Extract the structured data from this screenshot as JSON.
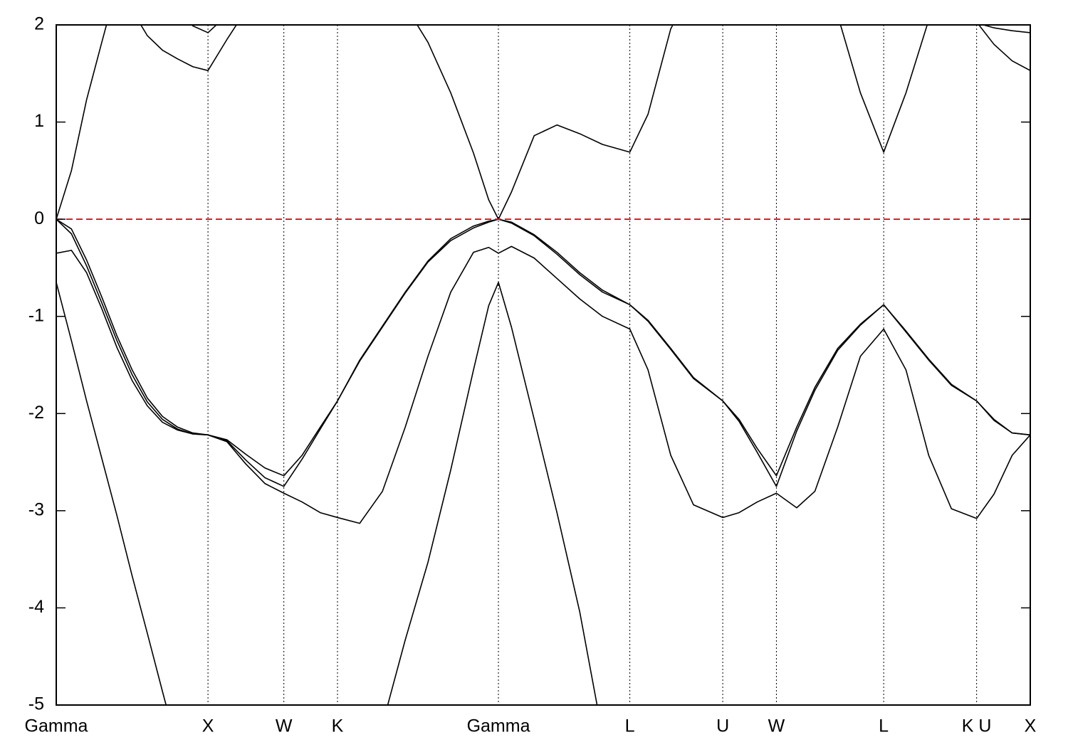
{
  "chart_data": {
    "type": "line",
    "x": [
      0,
      0.1,
      0.2,
      0.3,
      0.4,
      0.5,
      0.6,
      0.7,
      0.8,
      0.9,
      1.0,
      1.125,
      1.25,
      1.375,
      1.5,
      1.62,
      1.74,
      1.8536,
      2.0,
      2.15,
      2.3,
      2.45,
      2.6,
      2.75,
      2.85,
      2.9142,
      3.0,
      3.15,
      3.3,
      3.45,
      3.6,
      3.7802,
      3.9,
      4.05,
      4.2,
      4.3926,
      4.5,
      4.62,
      4.7462,
      4.88,
      5.0,
      5.15,
      5.3,
      5.4533,
      5.6,
      5.75,
      5.9,
      6.0657,
      6.18,
      6.3,
      6.4193
    ],
    "series": [
      {
        "color": "#000000",
        "values": [
          -0.65,
          -1.25,
          -1.87,
          -2.46,
          -3.05,
          -3.67,
          -4.26,
          -4.86,
          -5.45,
          null,
          null,
          null,
          null,
          null,
          null,
          null,
          null,
          null,
          null,
          -5.2,
          -4.33,
          -3.53,
          -2.58,
          -1.55,
          -0.89,
          -0.65,
          -1.11,
          -2.06,
          -3.02,
          -4.04,
          -5.3,
          null,
          null,
          null,
          null,
          null,
          null,
          null,
          null,
          null,
          null,
          null,
          null,
          null,
          null,
          null,
          null,
          null,
          null,
          null,
          null
        ]
      },
      {
        "color": "#000000",
        "values": [
          -0.35,
          -0.32,
          -0.55,
          -0.92,
          -1.32,
          -1.66,
          -1.92,
          -2.09,
          -2.17,
          -2.21,
          -2.22,
          -2.29,
          -2.52,
          -2.72,
          -2.82,
          -2.91,
          -3.02,
          -3.07,
          -3.13,
          -2.8,
          -2.14,
          -1.41,
          -0.75,
          -0.34,
          -0.29,
          -0.35,
          -0.28,
          -0.4,
          -0.61,
          -0.82,
          -1.0,
          -1.13,
          -1.55,
          -2.43,
          -2.94,
          -3.07,
          -3.02,
          -2.91,
          -2.82,
          -2.97,
          -2.8,
          -2.14,
          -1.41,
          -1.13,
          -1.55,
          -2.43,
          -2.98,
          -3.08,
          -2.83,
          -2.43,
          -2.22
        ]
      },
      {
        "color": "#000000",
        "values": [
          0,
          -0.15,
          -0.48,
          -0.86,
          -1.25,
          -1.6,
          -1.88,
          -2.06,
          -2.16,
          -2.21,
          -2.22,
          -2.28,
          -2.48,
          -2.66,
          -2.75,
          -2.47,
          -2.16,
          -1.87,
          -1.46,
          -1.11,
          -0.76,
          -0.44,
          -0.22,
          -0.09,
          -0.03,
          0,
          -0.04,
          -0.17,
          -0.36,
          -0.57,
          -0.75,
          -0.88,
          -1.05,
          -1.34,
          -1.64,
          -1.87,
          -2.08,
          -2.4,
          -2.75,
          -2.18,
          -1.76,
          -1.35,
          -1.09,
          -0.88,
          -1.16,
          -1.45,
          -1.71,
          -1.87,
          -2.07,
          -2.2,
          -2.22
        ]
      },
      {
        "color": "#000000",
        "values": [
          0,
          -0.1,
          -0.42,
          -0.8,
          -1.2,
          -1.55,
          -1.84,
          -2.03,
          -2.14,
          -2.2,
          -2.22,
          -2.27,
          -2.42,
          -2.56,
          -2.64,
          -2.43,
          -2.14,
          -1.87,
          -1.45,
          -1.1,
          -0.75,
          -0.43,
          -0.2,
          -0.07,
          -0.02,
          0,
          -0.03,
          -0.16,
          -0.34,
          -0.55,
          -0.73,
          -0.88,
          -1.04,
          -1.33,
          -1.63,
          -1.87,
          -2.06,
          -2.36,
          -2.64,
          -2.14,
          -1.73,
          -1.33,
          -1.08,
          -0.88,
          -1.15,
          -1.44,
          -1.7,
          -1.87,
          -2.06,
          -2.2,
          -2.22
        ]
      },
      {
        "color": "#000000",
        "values": [
          0,
          0.5,
          1.23,
          1.82,
          2.4,
          2.15,
          1.89,
          1.74,
          1.65,
          1.57,
          1.53,
          1.85,
          2.15,
          null,
          null,
          null,
          null,
          null,
          null,
          null,
          2.2,
          1.82,
          1.3,
          0.68,
          0.2,
          0,
          0.28,
          0.86,
          0.97,
          0.88,
          0.77,
          0.69,
          1.08,
          1.96,
          2.4,
          null,
          null,
          null,
          null,
          null,
          null,
          2.1,
          1.3,
          0.69,
          1.3,
          2.05,
          null,
          2.03,
          1.8,
          1.63,
          1.53
        ]
      },
      {
        "color": "#000000",
        "values": [
          null,
          null,
          null,
          null,
          null,
          null,
          null,
          null,
          2.15,
          1.99,
          1.92,
          2.1,
          null,
          null,
          null,
          null,
          null,
          null,
          null,
          null,
          null,
          null,
          null,
          null,
          null,
          null,
          null,
          null,
          null,
          null,
          null,
          null,
          null,
          null,
          null,
          null,
          null,
          null,
          null,
          null,
          null,
          null,
          null,
          null,
          null,
          null,
          null,
          2.02,
          1.97,
          1.94,
          1.92
        ]
      }
    ],
    "xlim": [
      0,
      6.4193
    ],
    "xticks": [
      {
        "value": 0,
        "label": "Gamma"
      },
      {
        "value": 1,
        "label": "X"
      },
      {
        "value": 1.5,
        "label": "W"
      },
      {
        "value": 1.8536,
        "label": "K"
      },
      {
        "value": 2.9142,
        "label": "Gamma"
      },
      {
        "value": 3.7802,
        "label": "L"
      },
      {
        "value": 4.3926,
        "label": "U"
      },
      {
        "value": 4.7462,
        "label": "W"
      },
      {
        "value": 5.4533,
        "label": "L"
      },
      {
        "value": 6.0657,
        "label": "K U"
      },
      {
        "value": 6.4193,
        "label": "X"
      }
    ],
    "ylim": [
      -5,
      2
    ],
    "yticks": [
      -5,
      -4,
      -3,
      -2,
      -1,
      0,
      1,
      2
    ],
    "fermi_level": 0,
    "fermi_color": "#e00000",
    "grid": true
  }
}
